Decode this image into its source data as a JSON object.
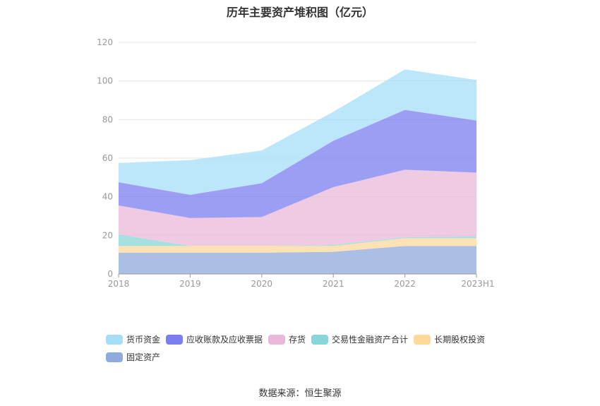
{
  "chart_data": {
    "type": "area",
    "stacked": true,
    "title": "历年主要资产堆积图（亿元）",
    "categories": [
      "2018",
      "2019",
      "2020",
      "2021",
      "2022",
      "2023H1"
    ],
    "ylim": [
      0,
      120
    ],
    "yticks": [
      0,
      20,
      40,
      60,
      80,
      100,
      120
    ],
    "grid": true,
    "legend_position": "bottom",
    "series": [
      {
        "name": "固定资产",
        "color": "#8faadc",
        "values": [
          11,
          11,
          11,
          11.5,
          14.5,
          14.5
        ]
      },
      {
        "name": "长期股权投资",
        "color": "#ffd89a",
        "values": [
          3.5,
          3.5,
          3.5,
          3,
          4,
          4
        ]
      },
      {
        "name": "交易性金融资产合计",
        "color": "#88d6d8",
        "values": [
          6,
          0,
          0,
          0.5,
          0.5,
          1
        ]
      },
      {
        "name": "存货",
        "color": "#eab8d9",
        "values": [
          15,
          14.5,
          15,
          30,
          35,
          33
        ]
      },
      {
        "name": "应收账款及应收票据",
        "color": "#7b7ef0",
        "values": [
          12,
          12,
          17.5,
          24,
          31,
          27
        ]
      },
      {
        "name": "货币资金",
        "color": "#a6def8",
        "values": [
          10,
          18,
          17,
          15,
          21,
          21
        ]
      }
    ]
  },
  "legend_order": [
    5,
    4,
    3,
    2,
    1,
    0
  ],
  "source": "数据来源：恒生聚源"
}
